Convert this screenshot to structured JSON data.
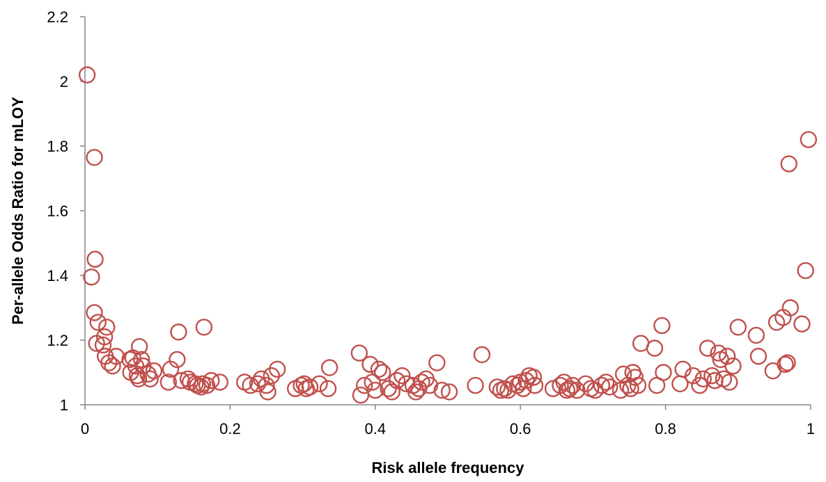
{
  "chart_data": {
    "type": "scatter",
    "title": "",
    "xlabel": "Risk allele frequency",
    "ylabel": "Per-allele Odds Ratio for mLOY",
    "xlim": [
      0,
      1
    ],
    "ylim": [
      1,
      2.2
    ],
    "x_ticks": [
      0,
      0.2,
      0.4,
      0.6,
      0.8,
      1
    ],
    "x_tick_labels": [
      "0",
      "0.2",
      "0.4",
      "0.6",
      "0.8",
      "1"
    ],
    "y_ticks": [
      1,
      1.2,
      1.4,
      1.6,
      1.8,
      2,
      2.2
    ],
    "y_tick_labels": [
      "1",
      "1.2",
      "1.4",
      "1.6",
      "1.8",
      "2",
      "2.2"
    ],
    "grid": false,
    "marker": "open-circle",
    "marker_color": "#C0504D",
    "points": [
      {
        "x": 0.003,
        "y": 2.02
      },
      {
        "x": 0.013,
        "y": 1.765
      },
      {
        "x": 0.009,
        "y": 1.395
      },
      {
        "x": 0.014,
        "y": 1.45
      },
      {
        "x": 0.013,
        "y": 1.285
      },
      {
        "x": 0.018,
        "y": 1.255
      },
      {
        "x": 0.03,
        "y": 1.24
      },
      {
        "x": 0.027,
        "y": 1.21
      },
      {
        "x": 0.016,
        "y": 1.19
      },
      {
        "x": 0.025,
        "y": 1.185
      },
      {
        "x": 0.028,
        "y": 1.15
      },
      {
        "x": 0.033,
        "y": 1.13
      },
      {
        "x": 0.038,
        "y": 1.12
      },
      {
        "x": 0.043,
        "y": 1.15
      },
      {
        "x": 0.062,
        "y": 1.14
      },
      {
        "x": 0.066,
        "y": 1.145
      },
      {
        "x": 0.07,
        "y": 1.12
      },
      {
        "x": 0.075,
        "y": 1.18
      },
      {
        "x": 0.078,
        "y": 1.14
      },
      {
        "x": 0.08,
        "y": 1.12
      },
      {
        "x": 0.063,
        "y": 1.1
      },
      {
        "x": 0.072,
        "y": 1.09
      },
      {
        "x": 0.074,
        "y": 1.08
      },
      {
        "x": 0.087,
        "y": 1.095
      },
      {
        "x": 0.09,
        "y": 1.08
      },
      {
        "x": 0.095,
        "y": 1.105
      },
      {
        "x": 0.118,
        "y": 1.11
      },
      {
        "x": 0.115,
        "y": 1.07
      },
      {
        "x": 0.127,
        "y": 1.14
      },
      {
        "x": 0.129,
        "y": 1.225
      },
      {
        "x": 0.133,
        "y": 1.075
      },
      {
        "x": 0.142,
        "y": 1.08
      },
      {
        "x": 0.145,
        "y": 1.07
      },
      {
        "x": 0.152,
        "y": 1.065
      },
      {
        "x": 0.155,
        "y": 1.06
      },
      {
        "x": 0.16,
        "y": 1.055
      },
      {
        "x": 0.162,
        "y": 1.065
      },
      {
        "x": 0.164,
        "y": 1.24
      },
      {
        "x": 0.168,
        "y": 1.06
      },
      {
        "x": 0.174,
        "y": 1.075
      },
      {
        "x": 0.186,
        "y": 1.07
      },
      {
        "x": 0.22,
        "y": 1.07
      },
      {
        "x": 0.228,
        "y": 1.06
      },
      {
        "x": 0.238,
        "y": 1.065
      },
      {
        "x": 0.243,
        "y": 1.08
      },
      {
        "x": 0.25,
        "y": 1.06
      },
      {
        "x": 0.252,
        "y": 1.04
      },
      {
        "x": 0.257,
        "y": 1.09
      },
      {
        "x": 0.265,
        "y": 1.11
      },
      {
        "x": 0.29,
        "y": 1.05
      },
      {
        "x": 0.298,
        "y": 1.06
      },
      {
        "x": 0.302,
        "y": 1.065
      },
      {
        "x": 0.305,
        "y": 1.05
      },
      {
        "x": 0.31,
        "y": 1.055
      },
      {
        "x": 0.323,
        "y": 1.065
      },
      {
        "x": 0.335,
        "y": 1.05
      },
      {
        "x": 0.337,
        "y": 1.115
      },
      {
        "x": 0.378,
        "y": 1.16
      },
      {
        "x": 0.38,
        "y": 1.03
      },
      {
        "x": 0.385,
        "y": 1.06
      },
      {
        "x": 0.393,
        "y": 1.125
      },
      {
        "x": 0.396,
        "y": 1.07
      },
      {
        "x": 0.4,
        "y": 1.045
      },
      {
        "x": 0.405,
        "y": 1.11
      },
      {
        "x": 0.41,
        "y": 1.1
      },
      {
        "x": 0.418,
        "y": 1.05
      },
      {
        "x": 0.423,
        "y": 1.04
      },
      {
        "x": 0.43,
        "y": 1.075
      },
      {
        "x": 0.437,
        "y": 1.09
      },
      {
        "x": 0.443,
        "y": 1.065
      },
      {
        "x": 0.452,
        "y": 1.06
      },
      {
        "x": 0.456,
        "y": 1.04
      },
      {
        "x": 0.46,
        "y": 1.05
      },
      {
        "x": 0.464,
        "y": 1.07
      },
      {
        "x": 0.47,
        "y": 1.08
      },
      {
        "x": 0.475,
        "y": 1.06
      },
      {
        "x": 0.485,
        "y": 1.13
      },
      {
        "x": 0.492,
        "y": 1.045
      },
      {
        "x": 0.502,
        "y": 1.04
      },
      {
        "x": 0.538,
        "y": 1.06
      },
      {
        "x": 0.547,
        "y": 1.155
      },
      {
        "x": 0.568,
        "y": 1.055
      },
      {
        "x": 0.573,
        "y": 1.045
      },
      {
        "x": 0.578,
        "y": 1.05
      },
      {
        "x": 0.583,
        "y": 1.045
      },
      {
        "x": 0.59,
        "y": 1.065
      },
      {
        "x": 0.596,
        "y": 1.06
      },
      {
        "x": 0.6,
        "y": 1.07
      },
      {
        "x": 0.604,
        "y": 1.05
      },
      {
        "x": 0.608,
        "y": 1.075
      },
      {
        "x": 0.612,
        "y": 1.09
      },
      {
        "x": 0.618,
        "y": 1.085
      },
      {
        "x": 0.62,
        "y": 1.06
      },
      {
        "x": 0.645,
        "y": 1.05
      },
      {
        "x": 0.655,
        "y": 1.06
      },
      {
        "x": 0.66,
        "y": 1.07
      },
      {
        "x": 0.664,
        "y": 1.045
      },
      {
        "x": 0.668,
        "y": 1.05
      },
      {
        "x": 0.672,
        "y": 1.06
      },
      {
        "x": 0.678,
        "y": 1.045
      },
      {
        "x": 0.69,
        "y": 1.065
      },
      {
        "x": 0.697,
        "y": 1.05
      },
      {
        "x": 0.703,
        "y": 1.045
      },
      {
        "x": 0.712,
        "y": 1.06
      },
      {
        "x": 0.718,
        "y": 1.07
      },
      {
        "x": 0.723,
        "y": 1.055
      },
      {
        "x": 0.738,
        "y": 1.045
      },
      {
        "x": 0.742,
        "y": 1.095
      },
      {
        "x": 0.748,
        "y": 1.06
      },
      {
        "x": 0.752,
        "y": 1.05
      },
      {
        "x": 0.755,
        "y": 1.1
      },
      {
        "x": 0.758,
        "y": 1.085
      },
      {
        "x": 0.762,
        "y": 1.06
      },
      {
        "x": 0.766,
        "y": 1.19
      },
      {
        "x": 0.785,
        "y": 1.175
      },
      {
        "x": 0.788,
        "y": 1.06
      },
      {
        "x": 0.795,
        "y": 1.245
      },
      {
        "x": 0.797,
        "y": 1.1
      },
      {
        "x": 0.82,
        "y": 1.065
      },
      {
        "x": 0.824,
        "y": 1.11
      },
      {
        "x": 0.838,
        "y": 1.09
      },
      {
        "x": 0.847,
        "y": 1.06
      },
      {
        "x": 0.852,
        "y": 1.08
      },
      {
        "x": 0.858,
        "y": 1.175
      },
      {
        "x": 0.864,
        "y": 1.09
      },
      {
        "x": 0.868,
        "y": 1.075
      },
      {
        "x": 0.873,
        "y": 1.16
      },
      {
        "x": 0.876,
        "y": 1.14
      },
      {
        "x": 0.88,
        "y": 1.08
      },
      {
        "x": 0.885,
        "y": 1.15
      },
      {
        "x": 0.888,
        "y": 1.07
      },
      {
        "x": 0.893,
        "y": 1.12
      },
      {
        "x": 0.9,
        "y": 1.24
      },
      {
        "x": 0.925,
        "y": 1.215
      },
      {
        "x": 0.928,
        "y": 1.15
      },
      {
        "x": 0.948,
        "y": 1.105
      },
      {
        "x": 0.953,
        "y": 1.255
      },
      {
        "x": 0.962,
        "y": 1.27
      },
      {
        "x": 0.965,
        "y": 1.125
      },
      {
        "x": 0.968,
        "y": 1.13
      },
      {
        "x": 0.97,
        "y": 1.745
      },
      {
        "x": 0.972,
        "y": 1.3
      },
      {
        "x": 0.988,
        "y": 1.25
      },
      {
        "x": 0.993,
        "y": 1.415
      },
      {
        "x": 0.997,
        "y": 1.82
      }
    ]
  }
}
